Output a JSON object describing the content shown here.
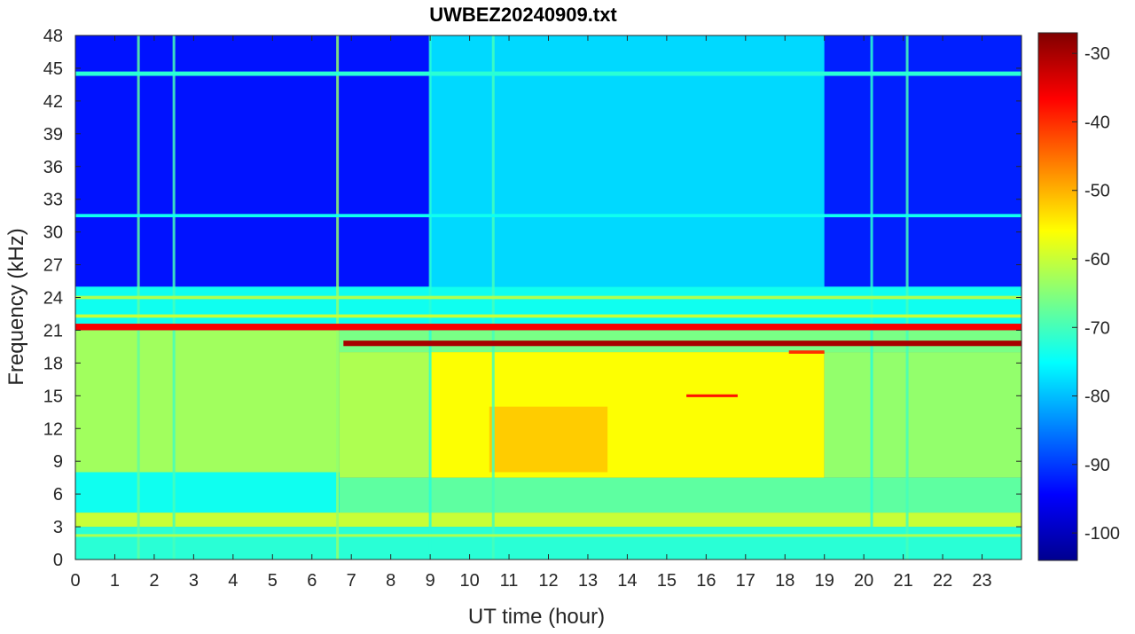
{
  "chart_data": {
    "type": "heatmap",
    "title": "UWBEZ20240909.txt",
    "xlabel": "UT time (hour)",
    "ylabel": "Frequency (kHz)",
    "xlim": [
      0,
      24
    ],
    "ylim": [
      0,
      48
    ],
    "x_ticks": [
      0,
      1,
      2,
      3,
      4,
      5,
      6,
      7,
      8,
      9,
      10,
      11,
      12,
      13,
      14,
      15,
      16,
      17,
      18,
      19,
      20,
      21,
      22,
      23
    ],
    "y_ticks": [
      0,
      3,
      6,
      9,
      12,
      15,
      18,
      21,
      24,
      27,
      30,
      33,
      36,
      39,
      42,
      45,
      48
    ],
    "x_tick_labels": [
      "0",
      "1",
      "2",
      "3",
      "4",
      "5",
      "6",
      "7",
      "8",
      "9",
      "10",
      "11",
      "12",
      "13",
      "14",
      "15",
      "16",
      "17",
      "18",
      "19",
      "20",
      "21",
      "22",
      "23"
    ],
    "y_tick_labels": [
      "0",
      "3",
      "6",
      "9",
      "12",
      "15",
      "18",
      "21",
      "24",
      "27",
      "30",
      "33",
      "36",
      "39",
      "42",
      "45",
      "48"
    ],
    "colorbar": {
      "colormap": "jet",
      "clim": [
        -104,
        -27
      ],
      "ticks": [
        -30,
        -40,
        -50,
        -60,
        -70,
        -80,
        -90,
        -100
      ],
      "tick_labels": [
        "-30",
        "-40",
        "-50",
        "-60",
        "-70",
        "-80",
        "-90",
        "-100"
      ]
    },
    "intensity_regions": [
      {
        "t": [
          0,
          24
        ],
        "f": [
          0,
          3
        ],
        "level": -72
      },
      {
        "t": [
          0,
          24
        ],
        "f": [
          3,
          4.3
        ],
        "level": -60
      },
      {
        "t": [
          0,
          6.7
        ],
        "f": [
          4.3,
          8
        ],
        "level": -74
      },
      {
        "t": [
          6.7,
          24
        ],
        "f": [
          4.3,
          7.5
        ],
        "level": -68
      },
      {
        "t": [
          0,
          6.7
        ],
        "f": [
          8,
          21
        ],
        "level": -63
      },
      {
        "t": [
          6.7,
          9
        ],
        "f": [
          7.5,
          19
        ],
        "level": -62
      },
      {
        "t": [
          9,
          19
        ],
        "f": [
          7.5,
          19
        ],
        "level": -56
      },
      {
        "t": [
          10.5,
          13.5
        ],
        "f": [
          8,
          14
        ],
        "level": -52
      },
      {
        "t": [
          19,
          24
        ],
        "f": [
          7.5,
          19
        ],
        "level": -64
      },
      {
        "t": [
          6.7,
          24
        ],
        "f": [
          19,
          21
        ],
        "level": -66
      },
      {
        "t": [
          0,
          24
        ],
        "f": [
          21.5,
          25
        ],
        "level": -74
      },
      {
        "t": [
          0,
          9
        ],
        "f": [
          25,
          48
        ],
        "level": -93
      },
      {
        "t": [
          9,
          19
        ],
        "f": [
          25,
          48
        ],
        "level": -78
      },
      {
        "t": [
          19,
          24
        ],
        "f": [
          25,
          48
        ],
        "level": -92
      }
    ],
    "horizontal_bands": [
      {
        "t": [
          0,
          24
        ],
        "f": 21.3,
        "level": -36,
        "width": 0.6
      },
      {
        "t": [
          6.8,
          24
        ],
        "f": 19.8,
        "level": -30,
        "width": 0.5
      },
      {
        "t": [
          0,
          24
        ],
        "f": 24.0,
        "level": -62,
        "width": 0.3
      },
      {
        "t": [
          0,
          24
        ],
        "f": 22.3,
        "level": -60,
        "width": 0.3
      },
      {
        "t": [
          0,
          24
        ],
        "f": 44.5,
        "level": -72,
        "width": 0.4
      },
      {
        "t": [
          0,
          24
        ],
        "f": 31.5,
        "level": -74,
        "width": 0.3
      },
      {
        "t": [
          0,
          24
        ],
        "f": 2.2,
        "level": -62,
        "width": 0.25
      },
      {
        "t": [
          15.5,
          16.8
        ],
        "f": 15.0,
        "level": -38,
        "width": 0.25
      },
      {
        "t": [
          18.1,
          19.0
        ],
        "f": 19.0,
        "level": -40,
        "width": 0.3
      }
    ],
    "vertical_lines": [
      {
        "t": 1.6,
        "level": -68
      },
      {
        "t": 2.5,
        "level": -70
      },
      {
        "t": 6.65,
        "level": -64
      },
      {
        "t": 9.0,
        "level": -72
      },
      {
        "t": 10.6,
        "level": -70
      },
      {
        "t": 21.1,
        "level": -70
      },
      {
        "t": 20.2,
        "level": -72
      }
    ]
  }
}
